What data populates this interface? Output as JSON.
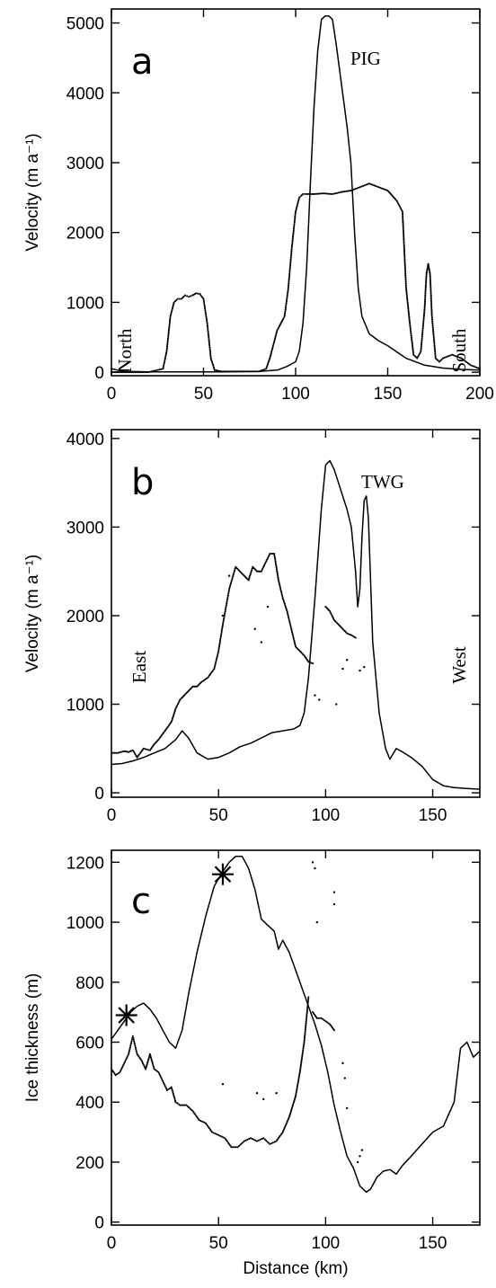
{
  "chart_data": [
    {
      "panel": "a",
      "type": "line",
      "xlabel": "",
      "ylabel": "Velocity (m a⁻¹)",
      "xlim": [
        0,
        200
      ],
      "ylim": [
        -50,
        5200
      ],
      "xticks": [
        0,
        50,
        100,
        150,
        200
      ],
      "yticks": [
        0,
        1000,
        2000,
        3000,
        4000,
        5000
      ],
      "annotations": [
        "a",
        "PIG",
        "North",
        "South"
      ],
      "series": [
        {
          "style": "solid",
          "x": [
            0,
            5,
            10,
            20,
            40,
            60,
            80,
            90,
            95,
            100,
            102,
            104,
            106,
            108,
            110,
            112,
            114,
            116,
            118,
            120,
            122,
            124,
            126,
            128,
            130,
            132,
            134,
            136,
            140,
            145,
            150,
            160,
            170,
            180,
            190,
            200
          ],
          "y": [
            50,
            20,
            10,
            5,
            5,
            5,
            10,
            30,
            80,
            150,
            300,
            700,
            1500,
            2700,
            3800,
            4600,
            5050,
            5100,
            5100,
            5050,
            4700,
            4300,
            3900,
            3500,
            3000,
            2000,
            1200,
            800,
            550,
            450,
            380,
            200,
            100,
            60,
            40,
            30
          ]
        },
        {
          "style": "dotted",
          "x": [
            0,
            5,
            10,
            20,
            28,
            30,
            32,
            34,
            36,
            38,
            40,
            42,
            44,
            46,
            48,
            50,
            52,
            54,
            56,
            60,
            70,
            80,
            84,
            86,
            88,
            90,
            92,
            94,
            96,
            98,
            100,
            102,
            104,
            106,
            110,
            115,
            120,
            125,
            130,
            135,
            140,
            145,
            150,
            155,
            158,
            160,
            162,
            164,
            166,
            168,
            170,
            171,
            172,
            173,
            174,
            176,
            178,
            180,
            185,
            190,
            195,
            200
          ],
          "y": [
            0,
            0,
            0,
            0,
            50,
            300,
            800,
            1000,
            1050,
            1050,
            1100,
            1080,
            1100,
            1130,
            1120,
            1050,
            700,
            200,
            30,
            10,
            10,
            10,
            50,
            200,
            400,
            600,
            700,
            800,
            1200,
            1800,
            2300,
            2500,
            2550,
            2550,
            2550,
            2560,
            2550,
            2580,
            2600,
            2650,
            2700,
            2650,
            2600,
            2450,
            2300,
            1200,
            700,
            250,
            200,
            300,
            900,
            1400,
            1550,
            1400,
            800,
            200,
            150,
            200,
            250,
            200,
            100,
            50
          ]
        }
      ]
    },
    {
      "panel": "b",
      "type": "line",
      "xlabel": "",
      "ylabel": "Velocity (m a⁻¹)",
      "xlim": [
        0,
        172
      ],
      "ylim": [
        -50,
        4100
      ],
      "xticks": [
        0,
        50,
        100,
        150
      ],
      "yticks": [
        0,
        1000,
        2000,
        3000,
        4000
      ],
      "annotations": [
        "b",
        "TWG",
        "East",
        "West"
      ],
      "series": [
        {
          "style": "solid",
          "x": [
            0,
            5,
            10,
            15,
            20,
            25,
            30,
            33,
            36,
            40,
            45,
            50,
            55,
            60,
            65,
            70,
            75,
            80,
            85,
            88,
            90,
            92,
            95,
            98,
            100,
            102,
            104,
            106,
            108,
            110,
            112,
            114,
            115,
            116,
            117,
            118,
            119,
            120,
            122,
            125,
            128,
            130,
            133,
            136,
            140,
            145,
            150,
            155,
            160,
            165,
            172
          ],
          "y": [
            320,
            330,
            360,
            400,
            450,
            500,
            600,
            700,
            620,
            450,
            380,
            400,
            450,
            520,
            560,
            620,
            680,
            700,
            720,
            760,
            900,
            1300,
            2200,
            3200,
            3700,
            3750,
            3650,
            3500,
            3350,
            3200,
            3000,
            2500,
            2100,
            2300,
            2900,
            3300,
            3350,
            3100,
            1700,
            900,
            500,
            380,
            500,
            460,
            400,
            300,
            150,
            80,
            60,
            50,
            40
          ]
        },
        {
          "style": "dotted",
          "x": [
            0,
            3,
            6,
            8,
            10,
            12,
            15,
            18,
            20,
            22,
            25,
            28,
            30,
            32,
            34,
            36,
            38,
            40,
            42,
            45,
            48,
            50,
            52,
            55,
            58,
            60,
            62,
            64,
            66,
            68,
            70,
            72,
            74,
            76,
            78,
            80,
            82,
            84,
            86,
            88,
            90,
            92,
            94
          ],
          "y": [
            450,
            450,
            470,
            460,
            480,
            400,
            500,
            480,
            550,
            600,
            700,
            800,
            950,
            1050,
            1100,
            1150,
            1200,
            1200,
            1250,
            1300,
            1400,
            1600,
            1900,
            2300,
            2550,
            2500,
            2450,
            2400,
            2550,
            2500,
            2500,
            2600,
            2700,
            2700,
            2400,
            2200,
            2050,
            1850,
            1650,
            1600,
            1550,
            1480,
            1460
          ]
        },
        {
          "style": "dotted",
          "x": [
            100,
            102,
            104,
            106,
            108,
            110,
            112,
            114
          ],
          "y": [
            2100,
            2050,
            1950,
            1900,
            1850,
            1800,
            1780,
            1750
          ]
        },
        {
          "style": "scatter",
          "x": [
            52,
            55,
            67,
            70,
            73,
            95,
            97,
            105,
            108,
            110,
            116,
            118
          ],
          "y": [
            2000,
            2450,
            1850,
            1700,
            2100,
            1100,
            1050,
            1000,
            1400,
            1500,
            1380,
            1420
          ]
        }
      ]
    },
    {
      "panel": "c",
      "type": "line",
      "xlabel": "Distance (km)",
      "ylabel": "Ice thickness (m)",
      "xlim": [
        0,
        172
      ],
      "ylim": [
        -10,
        1240
      ],
      "xticks": [
        0,
        50,
        100,
        150
      ],
      "yticks": [
        0,
        200,
        400,
        600,
        800,
        1000,
        1200
      ],
      "annotations": [
        "c"
      ],
      "series": [
        {
          "style": "solid",
          "x": [
            0,
            3,
            6,
            9,
            12,
            15,
            18,
            21,
            24,
            27,
            30,
            33,
            36,
            40,
            44,
            48,
            52,
            55,
            58,
            61,
            64,
            67,
            70,
            73,
            76,
            78,
            80,
            83,
            86,
            89,
            92,
            95,
            98,
            101,
            104,
            107,
            110,
            113,
            116,
            119,
            121,
            124,
            127,
            130,
            133,
            136,
            140,
            145,
            150,
            155,
            160,
            163,
            166,
            169,
            172
          ],
          "y": [
            610,
            640,
            670,
            700,
            720,
            730,
            710,
            680,
            640,
            600,
            580,
            640,
            760,
            900,
            1020,
            1120,
            1170,
            1200,
            1220,
            1220,
            1180,
            1110,
            1010,
            990,
            970,
            910,
            940,
            900,
            840,
            780,
            720,
            660,
            590,
            500,
            390,
            300,
            220,
            180,
            120,
            100,
            110,
            150,
            170,
            175,
            160,
            190,
            220,
            260,
            300,
            320,
            400,
            580,
            600,
            550,
            570
          ]
        },
        {
          "style": "dotted",
          "x": [
            0,
            2,
            4,
            6,
            8,
            10,
            12,
            14,
            16,
            18,
            20,
            22,
            24,
            26,
            28,
            30,
            32,
            35,
            38,
            41,
            44,
            47,
            50,
            53,
            56,
            59,
            62,
            65,
            68,
            71,
            74,
            77,
            80,
            83,
            86,
            88,
            90,
            92
          ],
          "y": [
            510,
            490,
            500,
            530,
            560,
            620,
            560,
            540,
            510,
            560,
            510,
            500,
            470,
            440,
            450,
            400,
            390,
            390,
            370,
            340,
            330,
            300,
            290,
            280,
            250,
            250,
            270,
            280,
            270,
            280,
            260,
            270,
            300,
            350,
            420,
            500,
            600,
            750
          ]
        },
        {
          "style": "dotted",
          "x": [
            94,
            96,
            98,
            100,
            102,
            104
          ],
          "y": [
            700,
            680,
            680,
            670,
            660,
            640
          ]
        },
        {
          "style": "scatter",
          "x": [
            52,
            68,
            71,
            77,
            94,
            95,
            96,
            104,
            104,
            108,
            109,
            110,
            115,
            116,
            117
          ],
          "y": [
            460,
            430,
            410,
            430,
            1200,
            1180,
            1000,
            1100,
            1060,
            530,
            480,
            380,
            200,
            220,
            240
          ]
        },
        {
          "style": "star",
          "x": [
            7,
            52
          ],
          "y": [
            690,
            1160
          ]
        }
      ]
    }
  ]
}
